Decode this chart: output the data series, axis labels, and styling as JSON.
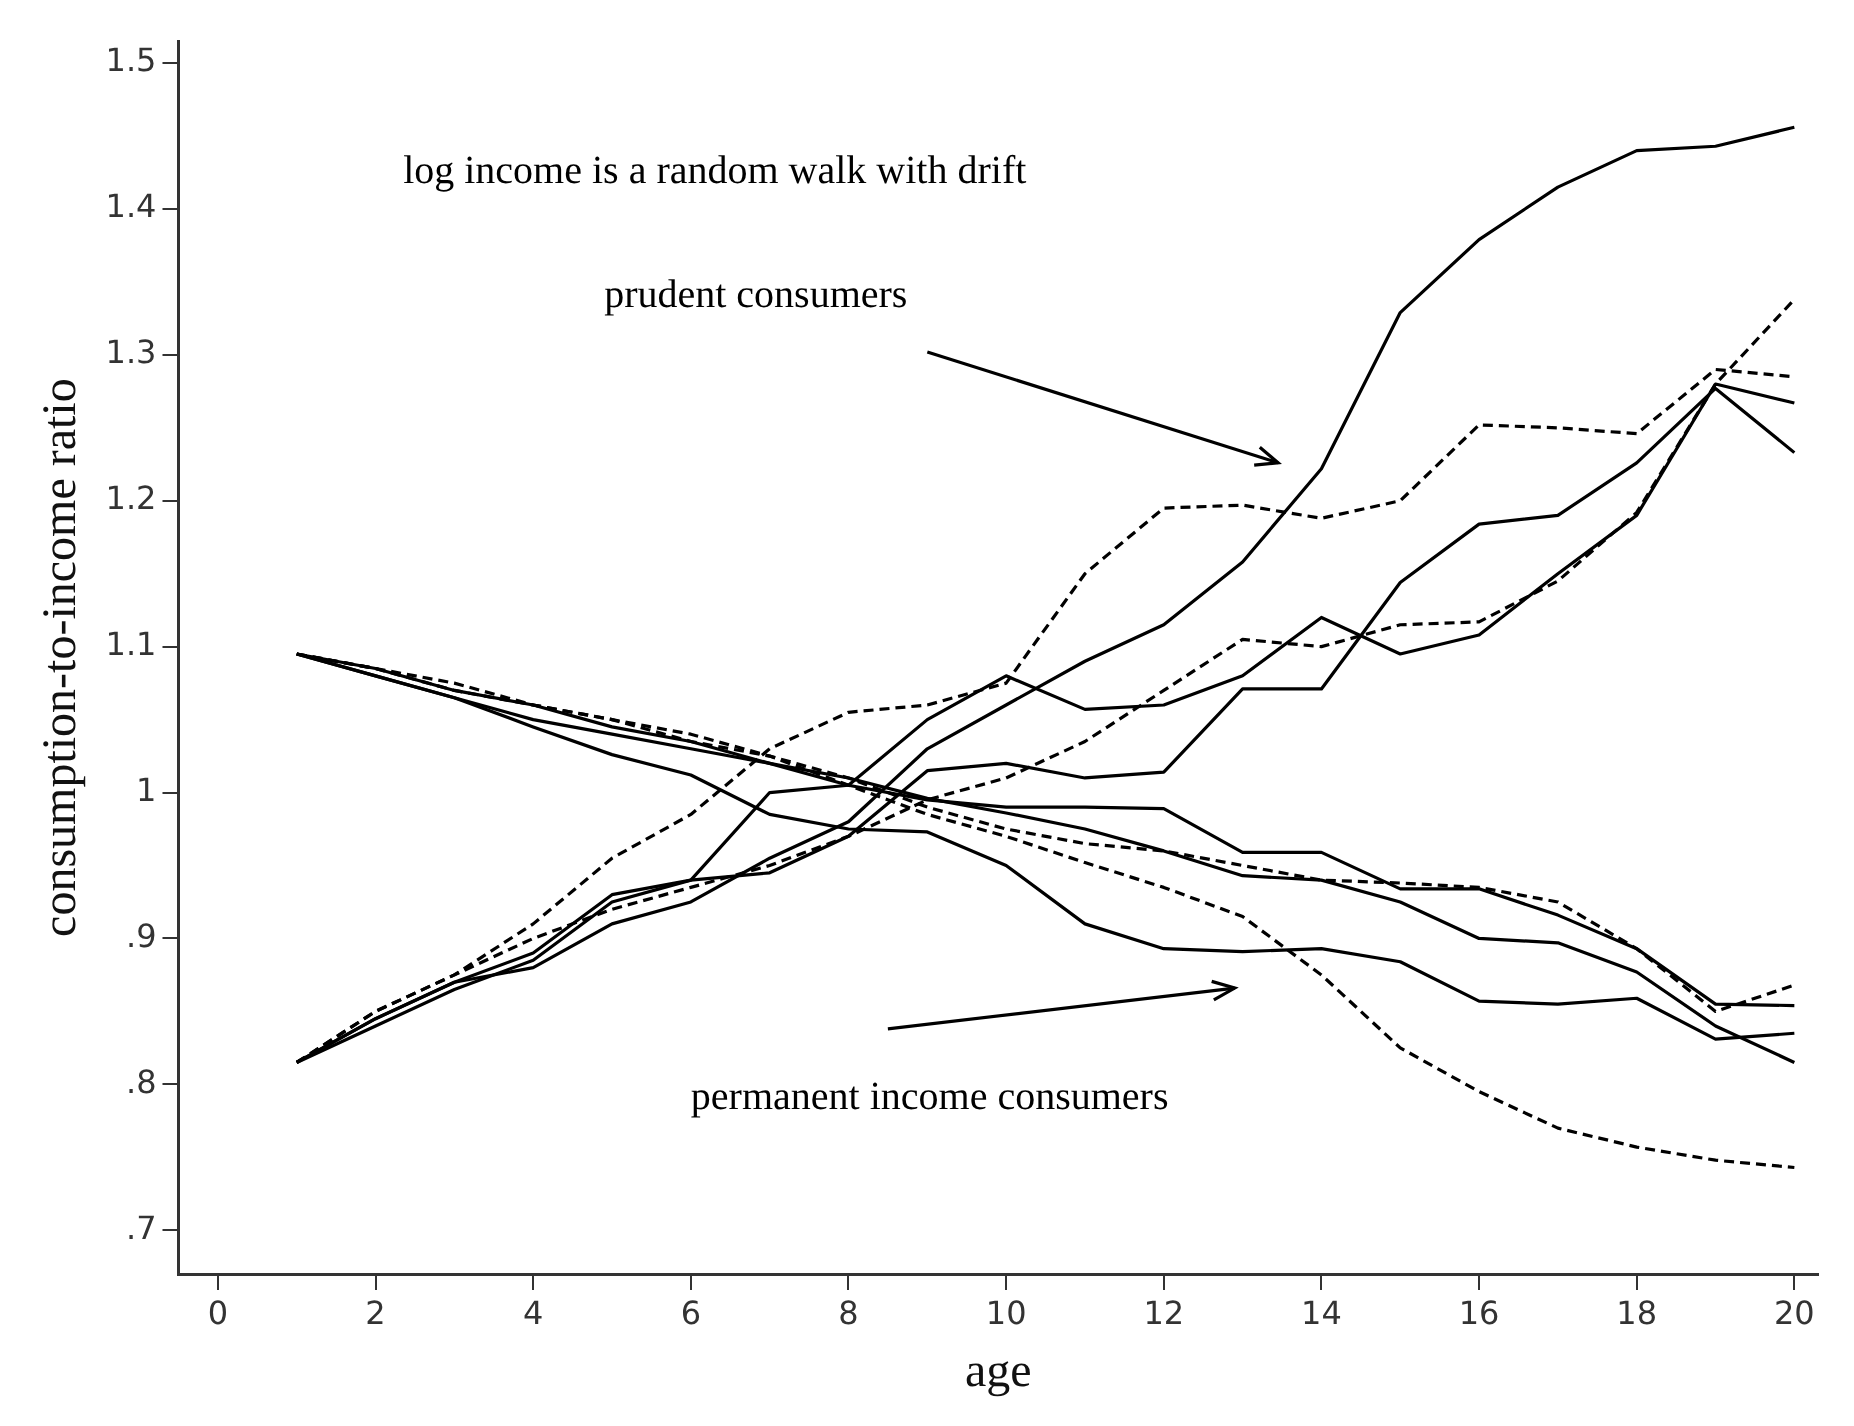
{
  "chart_data": {
    "type": "line",
    "xlabel": "age",
    "ylabel": "consumption-to-income ratio",
    "annotations": [
      "log income is a random walk with drift",
      "prudent consumers",
      "permanent income consumers"
    ],
    "x": [
      1,
      2,
      3,
      4,
      5,
      6,
      7,
      8,
      9,
      10,
      11,
      12,
      13,
      14,
      15,
      16,
      17,
      18,
      19,
      20
    ],
    "xlim": [
      -0.5,
      20.3
    ],
    "xticks": [
      0,
      2,
      4,
      6,
      8,
      10,
      12,
      14,
      16,
      18,
      20
    ],
    "ylim": [
      0.67,
      1.515
    ],
    "yticks": [
      {
        "value": 0.7,
        "label": ".7"
      },
      {
        "value": 0.8,
        "label": ".8"
      },
      {
        "value": 0.9,
        "label": ".9"
      },
      1,
      1.1,
      1.2,
      1.3,
      1.4,
      1.5
    ],
    "grid": false,
    "legend": false,
    "marker": "none",
    "series": [
      {
        "color": "#000000",
        "line_style": "solid",
        "values": [
          0.815,
          0.845,
          0.87,
          0.88,
          0.91,
          0.925,
          0.955,
          0.98,
          1.03,
          1.06,
          1.09,
          1.115,
          1.158,
          1.222,
          1.329,
          1.379,
          1.415,
          1.44,
          1.443,
          1.456
        ]
      },
      {
        "color": "#000000",
        "line_style": "dashed",
        "values": [
          0.815,
          0.85,
          0.875,
          0.91,
          0.955,
          0.985,
          1.03,
          1.055,
          1.06,
          1.075,
          1.15,
          1.195,
          1.197,
          1.188,
          1.2,
          1.252,
          1.25,
          1.246,
          1.29,
          1.285
        ]
      },
      {
        "color": "#000000",
        "line_style": "solid",
        "values": [
          0.815,
          0.845,
          0.87,
          0.89,
          0.93,
          0.94,
          1.0,
          1.005,
          1.05,
          1.08,
          1.057,
          1.06,
          1.08,
          1.12,
          1.095,
          1.108,
          1.15,
          1.19,
          1.28,
          1.267
        ]
      },
      {
        "color": "#000000",
        "line_style": "solid",
        "values": [
          0.815,
          0.84,
          0.865,
          0.885,
          0.925,
          0.94,
          0.945,
          0.97,
          1.015,
          1.02,
          1.01,
          1.014,
          1.071,
          1.071,
          1.144,
          1.184,
          1.19,
          1.226,
          1.277,
          1.233
        ]
      },
      {
        "color": "#000000",
        "line_style": "dashed",
        "values": [
          0.815,
          0.85,
          0.875,
          0.9,
          0.92,
          0.935,
          0.95,
          0.97,
          0.995,
          1.01,
          1.035,
          1.07,
          1.105,
          1.1,
          1.115,
          1.117,
          1.145,
          1.192,
          1.28,
          1.338
        ]
      },
      {
        "color": "#000000",
        "line_style": "solid",
        "values": [
          1.095,
          1.08,
          1.065,
          1.045,
          1.026,
          1.012,
          0.985,
          0.975,
          0.973,
          0.95,
          0.91,
          0.893,
          0.891,
          0.893,
          0.884,
          0.857,
          0.855,
          0.859,
          0.831,
          0.835
        ]
      },
      {
        "color": "#000000",
        "line_style": "solid",
        "values": [
          1.095,
          1.085,
          1.07,
          1.06,
          1.045,
          1.035,
          1.02,
          1.005,
          0.995,
          0.99,
          0.99,
          0.989,
          0.959,
          0.959,
          0.934,
          0.934,
          0.916,
          0.893,
          0.855,
          0.854
        ]
      },
      {
        "color": "#000000",
        "line_style": "solid",
        "values": [
          1.095,
          1.08,
          1.065,
          1.05,
          1.04,
          1.03,
          1.02,
          1.01,
          0.996,
          0.986,
          0.975,
          0.96,
          0.943,
          0.94,
          0.925,
          0.9,
          0.897,
          0.877,
          0.84,
          0.815
        ]
      },
      {
        "color": "#000000",
        "line_style": "dashed",
        "values": [
          1.095,
          1.085,
          1.075,
          1.06,
          1.05,
          1.035,
          1.025,
          1.01,
          0.99,
          0.975,
          0.965,
          0.96,
          0.95,
          0.94,
          0.938,
          0.935,
          0.925,
          0.893,
          0.85,
          0.868
        ]
      },
      {
        "color": "#000000",
        "line_style": "dashed",
        "values": [
          1.095,
          1.085,
          1.07,
          1.06,
          1.05,
          1.04,
          1.025,
          1.005,
          0.985,
          0.97,
          0.952,
          0.935,
          0.915,
          0.875,
          0.825,
          0.795,
          0.77,
          0.757,
          0.748,
          0.743
        ]
      }
    ]
  }
}
